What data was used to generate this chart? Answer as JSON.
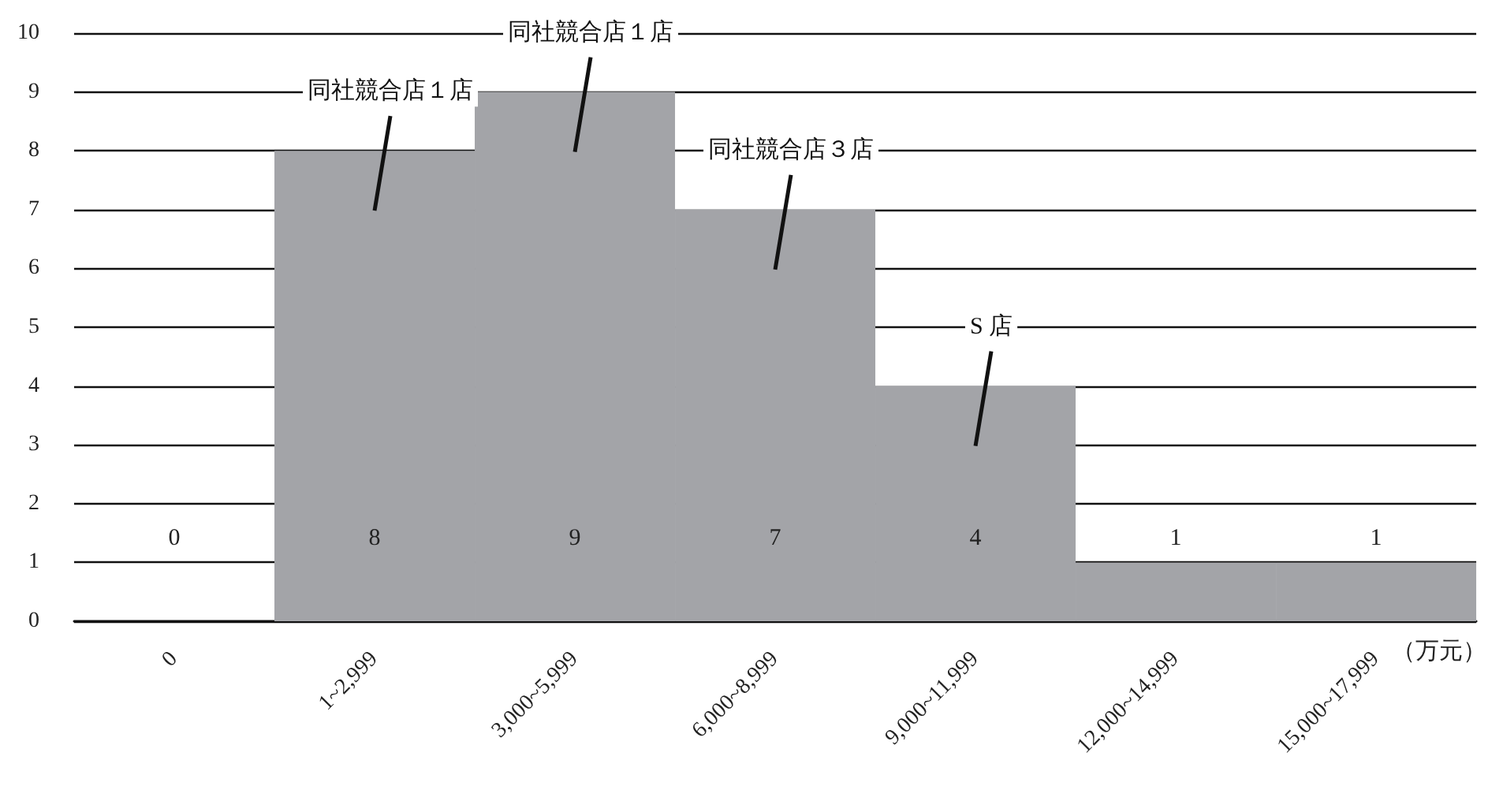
{
  "chart_data": {
    "type": "bar",
    "categories": [
      "0",
      "1~2,999",
      "3,000~5,999",
      "6,000~8,999",
      "9,000~11,999",
      "12,000~14,999",
      "15,000~17,999"
    ],
    "values": [
      0,
      8,
      9,
      7,
      4,
      1,
      1
    ],
    "color": "#a3a4a8",
    "xlabel": "（万元）",
    "ylim": [
      0,
      10
    ],
    "yticks": [
      0,
      1,
      2,
      3,
      4,
      5,
      6,
      7,
      8,
      9,
      10
    ],
    "grid": "y",
    "data_labels": true,
    "annotations": [
      {
        "text": "同社競合店１店",
        "x": "1~2,999",
        "y": 8
      },
      {
        "text": "同社競合店１店",
        "x": "3,000~5,999",
        "y": 9
      },
      {
        "text": "同社競合店３店",
        "x": "6,000~8,999",
        "y": 7
      },
      {
        "text": "S 店",
        "x": "9,000~11,999",
        "y": 4
      }
    ]
  }
}
